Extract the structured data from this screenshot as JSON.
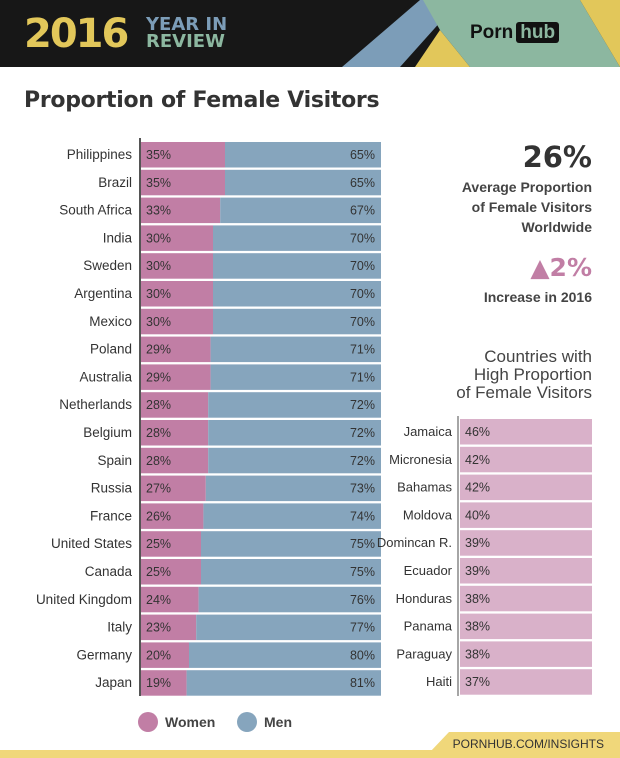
{
  "header": {
    "year": "2016",
    "line1": "YEAR IN",
    "line2": "REVIEW",
    "logo_a": "Porn",
    "logo_b": "hub"
  },
  "title": "Proportion of Female Visitors",
  "stats": {
    "average": "26%",
    "average_label": [
      "Average Proportion",
      "of Female Visitors",
      "Worldwide"
    ],
    "increase": "2%",
    "increase_label": "Increase in 2016",
    "high_title": [
      "Countries with",
      "High Proportion",
      "of Female Visitors"
    ]
  },
  "colors": {
    "women": "#c17ea5",
    "men": "#86a5bd",
    "high": "#d9b1c9",
    "yellow": "#e2c75a"
  },
  "legend": {
    "women": "Women",
    "men": "Men"
  },
  "footer": "PORNHUB.COM/INSIGHTS",
  "chart_data": [
    {
      "type": "bar",
      "stacked": true,
      "orientation": "horizontal",
      "xlim": [
        0,
        100
      ],
      "categories": [
        "Philippines",
        "Brazil",
        "South Africa",
        "India",
        "Sweden",
        "Argentina",
        "Mexico",
        "Poland",
        "Australia",
        "Netherlands",
        "Belgium",
        "Spain",
        "Russia",
        "France",
        "United States",
        "Canada",
        "United Kingdom",
        "Italy",
        "Germany",
        "Japan"
      ],
      "series": [
        {
          "name": "Women",
          "values": [
            35,
            35,
            33,
            30,
            30,
            30,
            30,
            29,
            29,
            28,
            28,
            28,
            27,
            26,
            25,
            25,
            24,
            23,
            20,
            19
          ]
        },
        {
          "name": "Men",
          "values": [
            65,
            65,
            67,
            70,
            70,
            70,
            70,
            71,
            71,
            72,
            72,
            72,
            73,
            74,
            75,
            75,
            76,
            77,
            80,
            81
          ]
        }
      ],
      "legend": "bottom-left"
    },
    {
      "type": "bar",
      "orientation": "horizontal",
      "title": "Countries with High Proportion of Female Visitors",
      "categories": [
        "Jamaica",
        "Micronesia",
        "Bahamas",
        "Moldova",
        "Domincan R.",
        "Ecuador",
        "Honduras",
        "Panama",
        "Paraguay",
        "Haiti"
      ],
      "values": [
        46,
        42,
        42,
        40,
        39,
        39,
        38,
        38,
        38,
        37
      ]
    }
  ]
}
